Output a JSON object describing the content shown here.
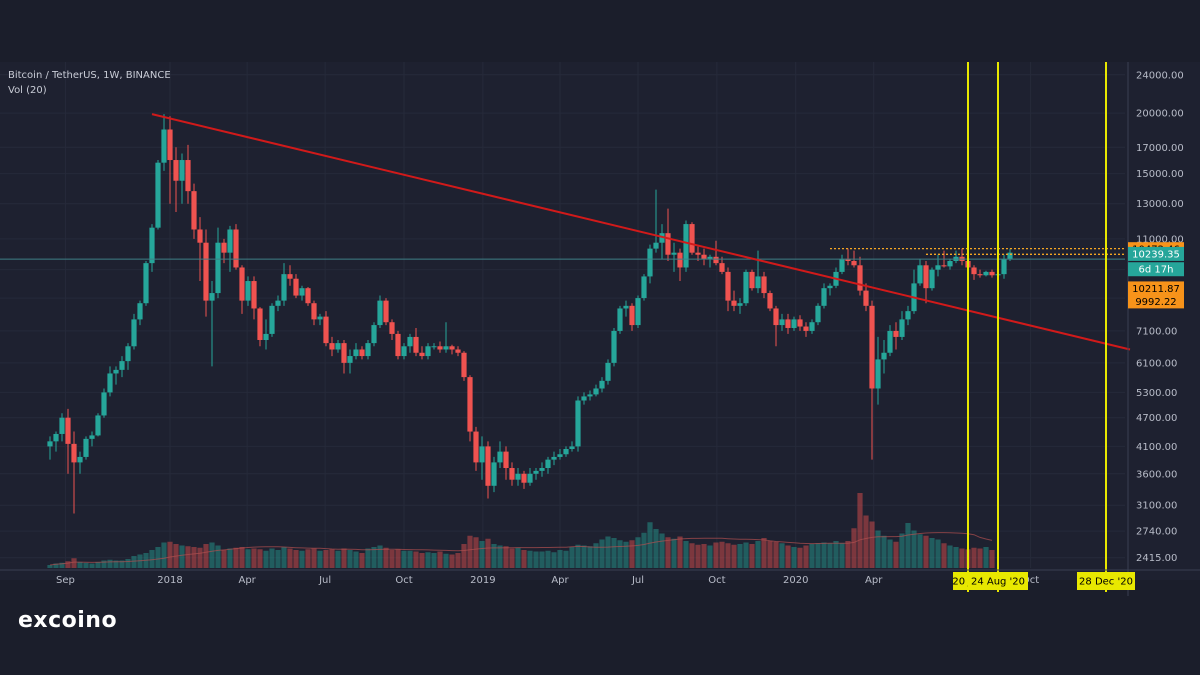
{
  "header": {
    "title": "Bitcoin / TetherUS, 1W, BINANCE",
    "indicator": "Vol (20)"
  },
  "logo": {
    "text": "excoino"
  },
  "colors": {
    "background": "#1b1e2b",
    "up": "#26a69a",
    "down": "#ef5350",
    "trendline": "#d11a1a",
    "vertical_lines": "#e8e800",
    "dotted_levels": "#f5a623",
    "price_tag_orange": "#f7931a",
    "price_tag_teal": "#26a69a"
  },
  "chart_data": {
    "type": "candlestick",
    "scale": "log",
    "ylim": [
      2300,
      25500
    ],
    "y_ticks": [
      "24000.00",
      "20000.00",
      "17000.00",
      "15000.00",
      "13000.00",
      "11000.00",
      "9500.00",
      "8300.00",
      "7100.00",
      "6100.00",
      "5300.00",
      "4700.00",
      "4100.00",
      "3600.00",
      "3100.00",
      "2740.00",
      "2415.00"
    ],
    "x_ticks": [
      "Sep",
      "2018",
      "Apr",
      "Jul",
      "Oct",
      "2019",
      "Apr",
      "Jul",
      "Oct",
      "2020",
      "Apr",
      "Oct"
    ],
    "x_start": "2017-08-14",
    "x_end": "2021-01-25",
    "date_labels": [
      "20 Ju",
      "24 Aug '20",
      "28 Dec '20"
    ],
    "vertical_lines": [
      "2020-07-20",
      "2020-08-24",
      "2020-12-28"
    ],
    "trendline": {
      "start": [
        "2017-12-11",
        19900
      ],
      "end": [
        "2021-01-25",
        6500
      ]
    },
    "horizontal_line": 9990,
    "dotted_levels": [
      {
        "start": "2020-02-10",
        "value": 10500
      },
      {
        "start": "2020-06-01",
        "value": 10220
      }
    ],
    "price_tags": [
      {
        "label": "10472.46",
        "value": 10472.46,
        "style": "orange"
      },
      {
        "label": "10239.35",
        "value": 10239.35,
        "style": "teal"
      },
      {
        "label": "6d 17h",
        "value": 9520,
        "style": "teal"
      },
      {
        "label": "10211.87",
        "value": 8690,
        "style": "orange"
      },
      {
        "label": "9992.22",
        "value": 8170,
        "style": "orange"
      }
    ],
    "candles_start": "2017-08-14",
    "candles": [
      [
        4100,
        4300,
        3850,
        4200
      ],
      [
        4200,
        4400,
        4000,
        4350
      ],
      [
        4350,
        4800,
        4200,
        4700
      ],
      [
        4700,
        4900,
        3600,
        4150
      ],
      [
        4150,
        4400,
        2980,
        3800
      ],
      [
        3800,
        4000,
        3600,
        3900
      ],
      [
        3900,
        4300,
        3850,
        4250
      ],
      [
        4250,
        4400,
        4100,
        4320
      ],
      [
        4320,
        4800,
        4300,
        4750
      ],
      [
        4750,
        5400,
        4700,
        5300
      ],
      [
        5300,
        6000,
        5200,
        5800
      ],
      [
        5800,
        6000,
        5500,
        5900
      ],
      [
        5900,
        6300,
        5700,
        6150
      ],
      [
        6150,
        6700,
        5900,
        6600
      ],
      [
        6600,
        7700,
        6500,
        7500
      ],
      [
        7500,
        8200,
        7300,
        8100
      ],
      [
        8100,
        9900,
        8000,
        9800
      ],
      [
        9800,
        11800,
        9400,
        11600
      ],
      [
        11600,
        16000,
        11500,
        15800
      ],
      [
        15800,
        19900,
        15200,
        18500
      ],
      [
        18500,
        19700,
        13000,
        16000
      ],
      [
        16000,
        17000,
        12500,
        14500
      ],
      [
        14500,
        16500,
        13000,
        16000
      ],
      [
        16000,
        17200,
        13000,
        13800
      ],
      [
        13800,
        14300,
        11000,
        11500
      ],
      [
        11500,
        12200,
        9000,
        10800
      ],
      [
        10800,
        11500,
        7600,
        8200
      ],
      [
        8200,
        9000,
        6000,
        8500
      ],
      [
        8500,
        11600,
        8300,
        10800
      ],
      [
        10800,
        11000,
        9800,
        10300
      ],
      [
        10300,
        11700,
        9400,
        11500
      ],
      [
        11500,
        11800,
        9500,
        9600
      ],
      [
        9600,
        9700,
        7700,
        8200
      ],
      [
        8200,
        9200,
        8000,
        9000
      ],
      [
        9000,
        9200,
        7500,
        7900
      ],
      [
        7900,
        7950,
        6600,
        6800
      ],
      [
        6800,
        7500,
        6500,
        7000
      ],
      [
        7000,
        8100,
        6900,
        8000
      ],
      [
        8000,
        8400,
        7800,
        8200
      ],
      [
        8200,
        9800,
        8000,
        9300
      ],
      [
        9300,
        9700,
        8800,
        9100
      ],
      [
        9100,
        9300,
        8300,
        8400
      ],
      [
        8400,
        8800,
        8200,
        8700
      ],
      [
        8700,
        8750,
        8000,
        8100
      ],
      [
        8100,
        8200,
        7300,
        7500
      ],
      [
        7500,
        7700,
        7300,
        7600
      ],
      [
        7600,
        7800,
        6600,
        6700
      ],
      [
        6700,
        6900,
        6300,
        6500
      ],
      [
        6500,
        6800,
        6400,
        6700
      ],
      [
        6700,
        6800,
        5800,
        6100
      ],
      [
        6100,
        6500,
        5800,
        6300
      ],
      [
        6300,
        6700,
        6200,
        6500
      ],
      [
        6500,
        6600,
        6200,
        6300
      ],
      [
        6300,
        6800,
        6200,
        6700
      ],
      [
        6700,
        7400,
        6600,
        7300
      ],
      [
        7300,
        8400,
        7200,
        8200
      ],
      [
        8200,
        8300,
        7300,
        7400
      ],
      [
        7400,
        7500,
        6800,
        7000
      ],
      [
        7000,
        7100,
        6200,
        6300
      ],
      [
        6300,
        6700,
        6200,
        6600
      ],
      [
        6600,
        7000,
        6400,
        6900
      ],
      [
        6900,
        7200,
        6300,
        6400
      ],
      [
        6400,
        6600,
        6200,
        6300
      ],
      [
        6300,
        6700,
        6200,
        6600
      ],
      [
        6600,
        6700,
        6500,
        6600
      ],
      [
        6600,
        6750,
        6400,
        6500
      ],
      [
        6500,
        7400,
        6400,
        6600
      ],
      [
        6600,
        6650,
        6350,
        6500
      ],
      [
        6500,
        6600,
        6300,
        6400
      ],
      [
        6400,
        6450,
        5600,
        5700
      ],
      [
        5700,
        5750,
        4200,
        4400
      ],
      [
        4400,
        4500,
        3650,
        3800
      ],
      [
        3800,
        4300,
        3500,
        4100
      ],
      [
        4100,
        4200,
        3200,
        3400
      ],
      [
        3400,
        3900,
        3300,
        3800
      ],
      [
        3800,
        4200,
        3700,
        4000
      ],
      [
        4000,
        4100,
        3500,
        3700
      ],
      [
        3700,
        3800,
        3400,
        3500
      ],
      [
        3500,
        3700,
        3400,
        3600
      ],
      [
        3600,
        3650,
        3350,
        3450
      ],
      [
        3450,
        3700,
        3400,
        3600
      ],
      [
        3600,
        3700,
        3500,
        3650
      ],
      [
        3650,
        3800,
        3550,
        3700
      ],
      [
        3700,
        3900,
        3600,
        3850
      ],
      [
        3850,
        4000,
        3750,
        3900
      ],
      [
        3900,
        4050,
        3850,
        3950
      ],
      [
        3950,
        4100,
        3900,
        4050
      ],
      [
        4050,
        4200,
        4000,
        4100
      ],
      [
        4100,
        5200,
        4000,
        5100
      ],
      [
        5100,
        5300,
        5000,
        5200
      ],
      [
        5200,
        5350,
        5100,
        5250
      ],
      [
        5250,
        5500,
        5200,
        5400
      ],
      [
        5400,
        5700,
        5300,
        5600
      ],
      [
        5600,
        6200,
        5500,
        6100
      ],
      [
        6100,
        7200,
        6000,
        7100
      ],
      [
        7100,
        8000,
        7000,
        7900
      ],
      [
        7900,
        8200,
        7600,
        8000
      ],
      [
        8000,
        8100,
        7100,
        7300
      ],
      [
        7300,
        8400,
        7200,
        8300
      ],
      [
        8300,
        9300,
        8200,
        9200
      ],
      [
        9200,
        10700,
        8900,
        10500
      ],
      [
        10500,
        13900,
        10300,
        10800
      ],
      [
        10800,
        11800,
        10000,
        11300
      ],
      [
        11300,
        12700,
        9900,
        10200
      ],
      [
        10200,
        10800,
        9400,
        10300
      ],
      [
        10300,
        10500,
        9000,
        9600
      ],
      [
        9600,
        12000,
        9400,
        11800
      ],
      [
        11800,
        11900,
        10200,
        10300
      ],
      [
        10300,
        10600,
        9900,
        10200
      ],
      [
        10200,
        10500,
        9700,
        10000
      ],
      [
        10000,
        10200,
        9600,
        10100
      ],
      [
        10100,
        10900,
        9700,
        9800
      ],
      [
        9800,
        10100,
        9300,
        9400
      ],
      [
        9400,
        9600,
        7800,
        8200
      ],
      [
        8200,
        8600,
        7800,
        8000
      ],
      [
        8000,
        8300,
        7700,
        8100
      ],
      [
        8100,
        9500,
        8000,
        9400
      ],
      [
        9400,
        9500,
        8600,
        8700
      ],
      [
        8700,
        10400,
        8500,
        9200
      ],
      [
        9200,
        9400,
        8300,
        8500
      ],
      [
        8500,
        8600,
        7800,
        7900
      ],
      [
        7900,
        8000,
        6600,
        7300
      ],
      [
        7300,
        7700,
        7100,
        7500
      ],
      [
        7500,
        7700,
        7000,
        7200
      ],
      [
        7200,
        7600,
        7100,
        7500
      ],
      [
        7500,
        7650,
        7100,
        7250
      ],
      [
        7250,
        7400,
        6900,
        7100
      ],
      [
        7100,
        7500,
        7000,
        7400
      ],
      [
        7400,
        8100,
        7300,
        8000
      ],
      [
        8000,
        8900,
        7900,
        8700
      ],
      [
        8700,
        8900,
        8400,
        8800
      ],
      [
        8800,
        9600,
        8700,
        9400
      ],
      [
        9400,
        10200,
        9300,
        10000
      ],
      [
        10000,
        10500,
        9700,
        9900
      ],
      [
        9900,
        10400,
        9600,
        9700
      ],
      [
        9700,
        10100,
        8400,
        8600
      ],
      [
        8600,
        8900,
        7800,
        8000
      ],
      [
        8000,
        8200,
        3850,
        5400
      ],
      [
        5400,
        6900,
        5000,
        6200
      ],
      [
        6200,
        6800,
        5800,
        6400
      ],
      [
        6400,
        7300,
        6300,
        7100
      ],
      [
        7100,
        7400,
        6500,
        6900
      ],
      [
        6900,
        7800,
        6800,
        7500
      ],
      [
        7500,
        8000,
        7300,
        7800
      ],
      [
        7800,
        9500,
        7700,
        8900
      ],
      [
        8900,
        10000,
        8800,
        9700
      ],
      [
        9700,
        9900,
        8100,
        8700
      ],
      [
        8700,
        9600,
        8600,
        9500
      ],
      [
        9500,
        10200,
        9200,
        9700
      ],
      [
        9700,
        10400,
        9600,
        9650
      ],
      [
        9650,
        10000,
        9500,
        9900
      ],
      [
        9900,
        10400,
        9800,
        10100
      ],
      [
        10100,
        10500,
        9700,
        9900
      ],
      [
        9900,
        10000,
        9450,
        9600
      ],
      [
        9600,
        9700,
        9050,
        9300
      ],
      [
        9300,
        9500,
        9150,
        9250
      ],
      [
        9250,
        9450,
        9200,
        9400
      ],
      [
        9400,
        9500,
        9150,
        9250
      ],
      [
        9250,
        9400,
        9150,
        9300
      ],
      [
        9300,
        10200,
        9100,
        10000
      ],
      [
        10000,
        10500,
        9900,
        10300
      ]
    ],
    "volumes": [
      0.4,
      0.6,
      0.7,
      0.9,
      1.3,
      0.8,
      0.7,
      0.6,
      0.8,
      1.0,
      1.1,
      1.0,
      1.0,
      1.2,
      1.6,
      1.8,
      2.0,
      2.4,
      2.8,
      3.4,
      3.5,
      3.2,
      3.0,
      2.9,
      2.8,
      2.7,
      3.2,
      3.4,
      3.0,
      2.4,
      2.6,
      2.7,
      2.8,
      2.5,
      2.6,
      2.5,
      2.3,
      2.6,
      2.4,
      2.8,
      2.6,
      2.4,
      2.3,
      2.5,
      2.6,
      2.3,
      2.4,
      2.5,
      2.3,
      2.6,
      2.4,
      2.2,
      2.0,
      2.6,
      2.8,
      3.0,
      2.7,
      2.4,
      2.5,
      2.3,
      2.3,
      2.2,
      2.0,
      2.1,
      2.0,
      2.2,
      1.9,
      1.8,
      2.0,
      3.2,
      4.3,
      4.1,
      3.6,
      3.9,
      3.2,
      3.0,
      2.9,
      2.6,
      2.7,
      2.4,
      2.3,
      2.2,
      2.2,
      2.3,
      2.1,
      2.4,
      2.3,
      2.8,
      3.1,
      3.0,
      2.9,
      3.3,
      3.8,
      4.2,
      4.0,
      3.7,
      3.5,
      3.7,
      4.1,
      4.7,
      6.1,
      5.2,
      4.6,
      4.1,
      3.9,
      4.2,
      3.6,
      3.3,
      3.1,
      3.2,
      3.0,
      3.4,
      3.5,
      3.3,
      3.1,
      3.2,
      3.4,
      3.2,
      3.6,
      4.0,
      3.6,
      3.5,
      3.3,
      3.0,
      2.8,
      2.7,
      3.0,
      3.2,
      3.3,
      3.4,
      3.3,
      3.6,
      3.3,
      3.6,
      5.3,
      10.0,
      7.0,
      6.2,
      5.0,
      4.3,
      3.8,
      3.5,
      4.6,
      6.0,
      5.0,
      4.5,
      4.3,
      4.0,
      3.8,
      3.3,
      3.0,
      2.8,
      2.6,
      2.5,
      2.7,
      2.6,
      2.8,
      2.4
    ]
  }
}
